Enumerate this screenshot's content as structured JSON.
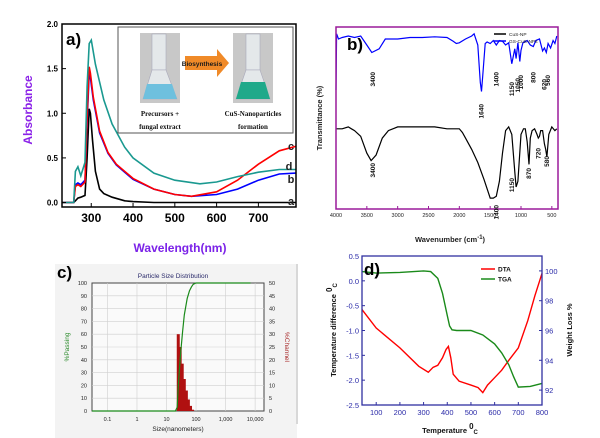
{
  "figure": {
    "panels": [
      "a)",
      "b)",
      "c)",
      "d)"
    ]
  },
  "chart_data": [
    {
      "id": "a",
      "type": "line",
      "panel_label": "a)",
      "xlabel": "Wavelength(nm)",
      "ylabel": "Absorbance",
      "xlim": [
        230,
        790
      ],
      "ylim": [
        -0.05,
        2.0
      ],
      "xticks": [
        300,
        400,
        500,
        600,
        700
      ],
      "yticks": [
        "0.0",
        "0.5",
        "1.0",
        "1.5",
        "2.0"
      ],
      "ytick_values": [
        0,
        0.5,
        1.0,
        1.5,
        2.0
      ],
      "series": [
        {
          "name": "a",
          "color": "#000000",
          "x": [
            230,
            258,
            262,
            268,
            275,
            285,
            290,
            295,
            298,
            303,
            310,
            320,
            330,
            350,
            380,
            400,
            450,
            500,
            600,
            700,
            790
          ],
          "y": [
            0,
            0,
            0.02,
            0.05,
            0.06,
            0.08,
            0.5,
            1.05,
            1.0,
            0.7,
            0.35,
            0.15,
            0.1,
            0.06,
            0.02,
            0.01,
            0,
            0,
            0,
            0,
            0
          ]
        },
        {
          "name": "b",
          "color": "#0000ff",
          "x": [
            230,
            258,
            262,
            268,
            275,
            285,
            290,
            295,
            298,
            305,
            320,
            340,
            360,
            400,
            450,
            500,
            540,
            600,
            650,
            700,
            750,
            790
          ],
          "y": [
            0,
            0,
            0.2,
            0.22,
            0.2,
            0.25,
            0.9,
            1.45,
            1.4,
            1.15,
            0.78,
            0.55,
            0.42,
            0.26,
            0.15,
            0.09,
            0.07,
            0.09,
            0.15,
            0.25,
            0.32,
            0.33
          ]
        },
        {
          "name": "c",
          "color": "#ff0000",
          "x": [
            230,
            258,
            262,
            268,
            275,
            285,
            290,
            295,
            298,
            305,
            320,
            340,
            360,
            400,
            450,
            500,
            540,
            600,
            650,
            700,
            750,
            790
          ],
          "y": [
            0,
            0,
            0.18,
            0.2,
            0.18,
            0.23,
            0.95,
            1.52,
            1.45,
            1.18,
            0.8,
            0.56,
            0.43,
            0.27,
            0.15,
            0.09,
            0.07,
            0.12,
            0.25,
            0.43,
            0.58,
            0.63
          ]
        },
        {
          "name": "d",
          "color": "#1a9990",
          "x": [
            230,
            258,
            262,
            268,
            275,
            285,
            290,
            295,
            300,
            310,
            330,
            350,
            380,
            400,
            450,
            500,
            560,
            600,
            650,
            700,
            750,
            790
          ],
          "y": [
            0,
            0,
            0.35,
            0.4,
            0.3,
            0.45,
            1.3,
            1.78,
            1.82,
            1.55,
            1.15,
            0.88,
            0.62,
            0.5,
            0.33,
            0.25,
            0.21,
            0.23,
            0.29,
            0.34,
            0.37,
            0.37
          ]
        }
      ],
      "curve_labels": [
        "c",
        "d",
        "b",
        "a"
      ],
      "inset": {
        "left_caption_1": "Precursors +",
        "left_caption_2": "fungal extract",
        "arrow_label": "Biosynthesis",
        "right_caption_1": "CuS-Nanoparticles",
        "right_caption_2": "formation",
        "left_liquid_color": "#6ec0de",
        "right_liquid_color": "#1fa98a"
      }
    },
    {
      "id": "b",
      "type": "line",
      "panel_label": "b)",
      "xlabel": "Wavenumber (cm",
      "xlabel_sup": "-1",
      "xlabel_end": ")",
      "ylabel": "Transmittance (%)",
      "xlim": [
        4000,
        400
      ],
      "xticks": [
        "4000",
        "3500",
        "3000",
        "2500",
        "2000",
        "1500",
        "1000",
        "500"
      ],
      "xtick_values": [
        4000,
        3500,
        3000,
        2500,
        2000,
        1500,
        1000,
        500
      ],
      "legend": [
        {
          "name": "CuS-NP",
          "color": "#000000"
        },
        {
          "name": "GS-CuS-NPs",
          "color": "#0000ff"
        }
      ],
      "legend_position": "top-right",
      "series": [
        {
          "name": "GS-CuS-NPs",
          "color": "#0000ff",
          "x": [
            4000,
            3990,
            3960,
            3900,
            3800,
            3700,
            3600,
            3500,
            3420,
            3300,
            3200,
            3100,
            3000,
            2800,
            2600,
            2400,
            2200,
            2100,
            2050,
            2000,
            1900,
            1800,
            1760,
            1700,
            1660,
            1640,
            1620,
            1580,
            1550,
            1500,
            1450,
            1400,
            1350,
            1300,
            1250,
            1200,
            1150,
            1100,
            1080,
            1050,
            1020,
            1000,
            970,
            900,
            850,
            800,
            760,
            700,
            650,
            620,
            590,
            560,
            520,
            480,
            450,
            420
          ],
          "y": [
            20,
            95,
            88,
            90,
            92,
            90,
            92,
            80,
            70,
            75,
            88,
            88,
            88,
            90,
            90,
            91,
            90,
            85,
            82,
            83,
            88,
            92,
            95,
            80,
            30,
            18,
            40,
            82,
            84,
            82,
            86,
            80,
            86,
            85,
            80,
            83,
            55,
            75,
            62,
            83,
            58,
            73,
            83,
            86,
            80,
            78,
            86,
            88,
            72,
            76,
            70,
            82,
            76,
            86,
            82,
            92
          ]
        },
        {
          "name": "CuS-NP",
          "color": "#000000",
          "x": [
            4000,
            3900,
            3800,
            3750,
            3700,
            3600,
            3500,
            3430,
            3350,
            3250,
            3150,
            3000,
            2800,
            2600,
            2400,
            2200,
            2000,
            1950,
            1900,
            1800,
            1700,
            1600,
            1500,
            1450,
            1400,
            1350,
            1300,
            1250,
            1200,
            1150,
            1100,
            1080,
            1050,
            1000,
            960,
            930,
            900,
            870,
            850,
            820,
            780,
            740,
            720,
            700,
            680,
            650,
            620,
            600,
            580,
            550,
            500,
            450,
            420
          ],
          "y": [
            33,
            33,
            34,
            33,
            32,
            29,
            20,
            16,
            19,
            28,
            32,
            34,
            34,
            34,
            34,
            33,
            33,
            31,
            28,
            22,
            15,
            6,
            -4,
            -4,
            -3,
            5,
            20,
            32,
            34,
            30,
            10,
            2,
            5,
            30,
            33,
            33,
            26,
            14,
            28,
            32,
            33,
            30,
            28,
            29,
            32,
            32,
            25,
            22,
            18,
            30,
            34,
            32,
            33
          ]
        }
      ],
      "annotations": [
        "3400",
        "1640",
        "1400",
        "1150",
        "1050",
        "1000",
        "800",
        "620",
        "560",
        "3400",
        "1400",
        "1150",
        "870",
        "720",
        "580"
      ]
    },
    {
      "id": "c",
      "type": "bar",
      "panel_label": "c)",
      "title": "Particle Size Distribution",
      "xlabel": "Size(nanometers)",
      "ylabel_left": "%Passing",
      "ylabel_right": "%Channel",
      "xscale": "log",
      "xlim": [
        0.03,
        20000
      ],
      "xticks": [
        "0.1",
        "1",
        "10",
        "100",
        "1,000",
        "10,000"
      ],
      "xtick_values": [
        0.1,
        1,
        10,
        100,
        1000,
        10000
      ],
      "ylim_left": [
        0,
        100
      ],
      "ylim_right": [
        0,
        50
      ],
      "yticks_left": [
        "0",
        "10",
        "20",
        "30",
        "40",
        "50",
        "60",
        "70",
        "80",
        "90",
        "100"
      ],
      "yticks_right": [
        "0",
        "5",
        "10",
        "15",
        "20",
        "25",
        "30",
        "35",
        "40",
        "45",
        "50"
      ],
      "bars": {
        "name": "%Channel",
        "color": "#b01010",
        "x": [
          25,
          29,
          34,
          40,
          47,
          55,
          65,
          76
        ],
        "values": [
          30,
          25,
          18.5,
          12.5,
          8,
          4.5,
          2,
          0.5
        ]
      },
      "cumulative": {
        "name": "%Passing",
        "color": "#1a8a1a",
        "x": [
          0.03,
          20,
          23,
          25,
          30,
          35,
          40,
          50,
          60,
          70,
          80,
          100,
          7000
        ],
        "y": [
          0,
          0,
          3,
          20,
          45,
          62,
          75,
          88,
          94,
          97,
          99,
          100,
          100
        ]
      }
    },
    {
      "id": "d",
      "type": "line",
      "panel_label": "d)",
      "xlabel": "Temperature ",
      "xlabel_sup": "0",
      "xlabel_sub": "C",
      "ylabel_left": "Temperature difference ",
      "ylabel_left_sup": "0",
      "ylabel_left_sub": "C",
      "ylabel_right": "Weight Loss %",
      "xlim": [
        40,
        800
      ],
      "ylim_left": [
        -2.5,
        0.5
      ],
      "ylim_right": [
        91,
        101
      ],
      "xticks": [
        "100",
        "200",
        "300",
        "400",
        "500",
        "600",
        "700",
        "800"
      ],
      "xtick_values": [
        100,
        200,
        300,
        400,
        500,
        600,
        700,
        800
      ],
      "yticks_left": [
        "-2.5",
        "-2.0",
        "-1.5",
        "-1.0",
        "-0.5",
        "0.0",
        "0.5"
      ],
      "ytick_left_values": [
        -2.5,
        -2.0,
        -1.5,
        -1.0,
        -0.5,
        0.0,
        0.5
      ],
      "yticks_right": [
        "92",
        "94",
        "96",
        "98",
        "100"
      ],
      "ytick_right_values": [
        92,
        94,
        96,
        98,
        100
      ],
      "legend": [
        {
          "name": "DTA",
          "color": "#ff0000"
        },
        {
          "name": "TGA",
          "color": "#1a8a1a"
        }
      ],
      "legend_position": "top-right",
      "series": [
        {
          "name": "DTA",
          "axis": "left",
          "color": "#ff0000",
          "x": [
            40,
            100,
            200,
            280,
            320,
            340,
            360,
            380,
            395,
            405,
            415,
            425,
            450,
            500,
            530,
            550,
            570,
            600,
            630,
            660,
            700,
            740,
            770,
            800
          ],
          "y": [
            -0.58,
            -0.95,
            -1.35,
            -1.72,
            -1.84,
            -1.74,
            -1.7,
            -1.55,
            -1.38,
            -1.32,
            -1.55,
            -1.88,
            -2.02,
            -2.1,
            -2.15,
            -2.25,
            -2.1,
            -1.95,
            -1.8,
            -1.6,
            -1.35,
            -0.8,
            -0.3,
            0.15
          ]
        },
        {
          "name": "TGA",
          "axis": "right",
          "color": "#1a8a1a",
          "x": [
            40,
            100,
            200,
            300,
            330,
            360,
            380,
            400,
            410,
            420,
            440,
            500,
            550,
            600,
            630,
            660,
            680,
            700,
            750,
            800
          ],
          "y": [
            99.95,
            99.85,
            99.9,
            100.0,
            99.95,
            99.5,
            98.5,
            97.0,
            96.3,
            96.05,
            96.0,
            96.0,
            95.7,
            95.1,
            94.5,
            93.7,
            92.9,
            92.2,
            92.25,
            92.45
          ]
        }
      ]
    }
  ]
}
